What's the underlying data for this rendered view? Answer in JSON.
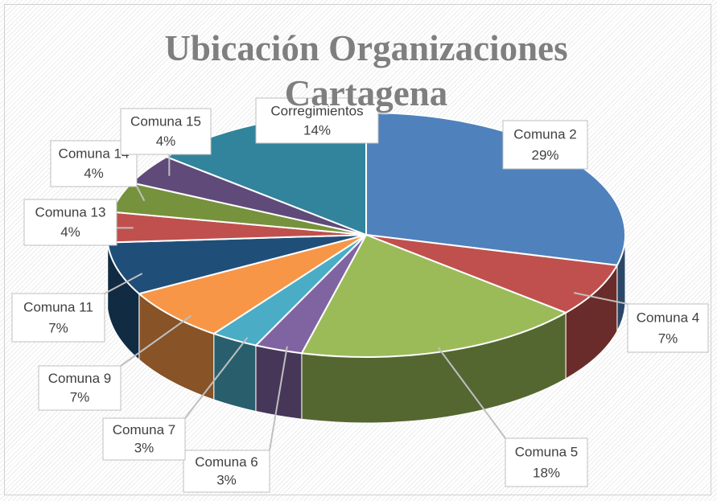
{
  "chart_data": {
    "type": "pie3d",
    "title": "Ubicación Organizaciones Cartagena",
    "categories": [
      "Comuna 2",
      "Comuna 4",
      "Comuna 5",
      "Comuna 6",
      "Comuna 7",
      "Comuna 9",
      "Comuna 11",
      "Comuna 13",
      "Comuna 14",
      "Comuna 15",
      "Corregimientos"
    ],
    "values": [
      29,
      7,
      18,
      3,
      3,
      7,
      7,
      4,
      4,
      4,
      14
    ],
    "value_labels": [
      "29%",
      "7%",
      "18%",
      "3%",
      "3%",
      "7%",
      "7%",
      "4%",
      "4%",
      "4%",
      "14%"
    ],
    "colors": [
      "#4f81bd",
      "#c0504d",
      "#9bbb59",
      "#8064a2",
      "#4bacc6",
      "#f79646",
      "#1f4e79",
      "#c0504d",
      "#76923c",
      "#5f4a7a",
      "#31849b"
    ]
  }
}
